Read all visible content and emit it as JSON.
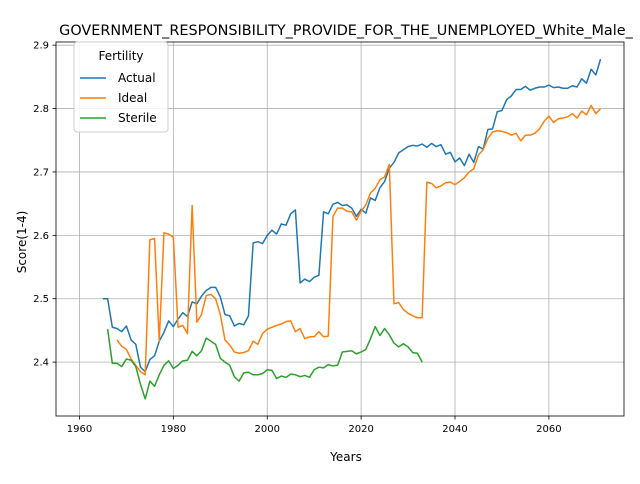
{
  "chart_data": {
    "type": "line",
    "title": "GOVERNMENT_RESPONSIBILITY_PROVIDE_FOR_THE_UNEMPLOYED_White_Male_",
    "xlabel": "Years",
    "ylabel": "Score(1-4)",
    "xlim": [
      1955,
      2076
    ],
    "ylim": [
      2.315,
      2.905
    ],
    "xticks": [
      1960,
      1980,
      2000,
      2020,
      2040,
      2060
    ],
    "yticks": [
      2.4,
      2.5,
      2.6,
      2.7,
      2.8,
      2.9
    ],
    "grid": true,
    "legend": {
      "title": "Fertility",
      "placement": "top-left"
    },
    "series": [
      {
        "name": "Actual",
        "color": "#1f77b4",
        "points": [
          [
            1965,
            2.5
          ],
          [
            1966,
            2.5
          ],
          [
            1967,
            2.455
          ],
          [
            1968,
            2.453
          ],
          [
            1969,
            2.448
          ],
          [
            1970,
            2.457
          ],
          [
            1971,
            2.435
          ],
          [
            1972,
            2.428
          ],
          [
            1973,
            2.392
          ],
          [
            1974,
            2.385
          ],
          [
            1975,
            2.404
          ],
          [
            1976,
            2.41
          ],
          [
            1977,
            2.433
          ],
          [
            1978,
            2.447
          ],
          [
            1979,
            2.465
          ],
          [
            1980,
            2.456
          ],
          [
            1981,
            2.468
          ],
          [
            1982,
            2.478
          ],
          [
            1983,
            2.472
          ],
          [
            1984,
            2.495
          ],
          [
            1985,
            2.492
          ],
          [
            1986,
            2.504
          ],
          [
            1987,
            2.513
          ],
          [
            1988,
            2.518
          ],
          [
            1989,
            2.518
          ],
          [
            1990,
            2.503
          ],
          [
            1991,
            2.475
          ],
          [
            1992,
            2.473
          ],
          [
            1993,
            2.457
          ],
          [
            1994,
            2.461
          ],
          [
            1995,
            2.459
          ],
          [
            1996,
            2.473
          ],
          [
            1997,
            2.588
          ],
          [
            1998,
            2.59
          ],
          [
            1999,
            2.587
          ],
          [
            2000,
            2.6
          ],
          [
            2001,
            2.608
          ],
          [
            2002,
            2.602
          ],
          [
            2003,
            2.618
          ],
          [
            2004,
            2.616
          ],
          [
            2005,
            2.634
          ],
          [
            2006,
            2.64
          ],
          [
            2007,
            2.525
          ],
          [
            2008,
            2.531
          ],
          [
            2009,
            2.527
          ],
          [
            2010,
            2.534
          ],
          [
            2011,
            2.537
          ],
          [
            2012,
            2.637
          ],
          [
            2013,
            2.634
          ],
          [
            2014,
            2.649
          ],
          [
            2015,
            2.652
          ],
          [
            2016,
            2.647
          ],
          [
            2017,
            2.648
          ],
          [
            2018,
            2.643
          ],
          [
            2019,
            2.63
          ],
          [
            2020,
            2.641
          ],
          [
            2021,
            2.635
          ],
          [
            2022,
            2.659
          ],
          [
            2023,
            2.655
          ],
          [
            2024,
            2.675
          ],
          [
            2025,
            2.685
          ],
          [
            2026,
            2.706
          ],
          [
            2027,
            2.715
          ],
          [
            2028,
            2.73
          ],
          [
            2029,
            2.735
          ],
          [
            2030,
            2.74
          ],
          [
            2031,
            2.742
          ],
          [
            2032,
            2.741
          ],
          [
            2033,
            2.744
          ],
          [
            2034,
            2.739
          ],
          [
            2035,
            2.745
          ],
          [
            2036,
            2.74
          ],
          [
            2037,
            2.743
          ],
          [
            2038,
            2.728
          ],
          [
            2039,
            2.731
          ],
          [
            2040,
            2.716
          ],
          [
            2041,
            2.722
          ],
          [
            2042,
            2.71
          ],
          [
            2043,
            2.728
          ],
          [
            2044,
            2.715
          ],
          [
            2045,
            2.74
          ],
          [
            2046,
            2.736
          ],
          [
            2047,
            2.767
          ],
          [
            2048,
            2.768
          ],
          [
            2049,
            2.795
          ],
          [
            2050,
            2.797
          ],
          [
            2051,
            2.814
          ],
          [
            2052,
            2.82
          ],
          [
            2053,
            2.83
          ],
          [
            2054,
            2.83
          ],
          [
            2055,
            2.835
          ],
          [
            2056,
            2.829
          ],
          [
            2057,
            2.832
          ],
          [
            2058,
            2.834
          ],
          [
            2059,
            2.834
          ],
          [
            2060,
            2.837
          ],
          [
            2061,
            2.833
          ],
          [
            2062,
            2.834
          ],
          [
            2063,
            2.832
          ],
          [
            2064,
            2.832
          ],
          [
            2065,
            2.836
          ],
          [
            2066,
            2.834
          ],
          [
            2067,
            2.847
          ],
          [
            2068,
            2.84
          ],
          [
            2069,
            2.862
          ],
          [
            2070,
            2.853
          ],
          [
            2071,
            2.878
          ]
        ]
      },
      {
        "name": "Ideal",
        "color": "#ff7f0e",
        "points": [
          [
            1968,
            2.435
          ],
          [
            1969,
            2.425
          ],
          [
            1970,
            2.42
          ],
          [
            1971,
            2.405
          ],
          [
            1972,
            2.395
          ],
          [
            1973,
            2.385
          ],
          [
            1974,
            2.38
          ],
          [
            1975,
            2.593
          ],
          [
            1976,
            2.595
          ],
          [
            1977,
            2.433
          ],
          [
            1978,
            2.604
          ],
          [
            1979,
            2.602
          ],
          [
            1980,
            2.597
          ],
          [
            1981,
            2.455
          ],
          [
            1982,
            2.458
          ],
          [
            1983,
            2.445
          ],
          [
            1984,
            2.647
          ],
          [
            1985,
            2.463
          ],
          [
            1986,
            2.475
          ],
          [
            1987,
            2.505
          ],
          [
            1988,
            2.507
          ],
          [
            1989,
            2.5
          ],
          [
            1990,
            2.475
          ],
          [
            1991,
            2.435
          ],
          [
            1992,
            2.427
          ],
          [
            1993,
            2.416
          ],
          [
            1994,
            2.414
          ],
          [
            1995,
            2.415
          ],
          [
            1996,
            2.418
          ],
          [
            1997,
            2.433
          ],
          [
            1998,
            2.428
          ],
          [
            1999,
            2.445
          ],
          [
            2000,
            2.452
          ],
          [
            2001,
            2.455
          ],
          [
            2002,
            2.458
          ],
          [
            2003,
            2.46
          ],
          [
            2004,
            2.464
          ],
          [
            2005,
            2.465
          ],
          [
            2006,
            2.448
          ],
          [
            2007,
            2.453
          ],
          [
            2008,
            2.437
          ],
          [
            2009,
            2.44
          ],
          [
            2010,
            2.44
          ],
          [
            2011,
            2.448
          ],
          [
            2012,
            2.44
          ],
          [
            2013,
            2.441
          ],
          [
            2014,
            2.63
          ],
          [
            2015,
            2.643
          ],
          [
            2016,
            2.643
          ],
          [
            2017,
            2.638
          ],
          [
            2018,
            2.637
          ],
          [
            2019,
            2.624
          ],
          [
            2020,
            2.638
          ],
          [
            2021,
            2.648
          ],
          [
            2022,
            2.667
          ],
          [
            2023,
            2.674
          ],
          [
            2024,
            2.688
          ],
          [
            2025,
            2.692
          ],
          [
            2026,
            2.712
          ],
          [
            2027,
            2.492
          ],
          [
            2028,
            2.494
          ],
          [
            2029,
            2.483
          ],
          [
            2030,
            2.477
          ],
          [
            2031,
            2.473
          ],
          [
            2032,
            2.47
          ],
          [
            2033,
            2.47
          ],
          [
            2034,
            2.684
          ],
          [
            2035,
            2.682
          ],
          [
            2036,
            2.675
          ],
          [
            2037,
            2.678
          ],
          [
            2038,
            2.683
          ],
          [
            2039,
            2.684
          ],
          [
            2040,
            2.68
          ],
          [
            2041,
            2.685
          ],
          [
            2042,
            2.691
          ],
          [
            2043,
            2.7
          ],
          [
            2044,
            2.705
          ],
          [
            2045,
            2.727
          ],
          [
            2046,
            2.735
          ],
          [
            2047,
            2.753
          ],
          [
            2048,
            2.763
          ],
          [
            2049,
            2.765
          ],
          [
            2050,
            2.764
          ],
          [
            2051,
            2.762
          ],
          [
            2052,
            2.758
          ],
          [
            2053,
            2.761
          ],
          [
            2054,
            2.749
          ],
          [
            2055,
            2.758
          ],
          [
            2056,
            2.758
          ],
          [
            2057,
            2.761
          ],
          [
            2058,
            2.768
          ],
          [
            2059,
            2.78
          ],
          [
            2060,
            2.788
          ],
          [
            2061,
            2.778
          ],
          [
            2062,
            2.784
          ],
          [
            2063,
            2.785
          ],
          [
            2064,
            2.787
          ],
          [
            2065,
            2.792
          ],
          [
            2066,
            2.785
          ],
          [
            2067,
            2.796
          ],
          [
            2068,
            2.79
          ],
          [
            2069,
            2.805
          ],
          [
            2070,
            2.792
          ],
          [
            2071,
            2.8
          ]
        ]
      },
      {
        "name": "Sterile",
        "color": "#2ca02c",
        "points": [
          [
            1966,
            2.452
          ],
          [
            1967,
            2.398
          ],
          [
            1968,
            2.398
          ],
          [
            1969,
            2.393
          ],
          [
            1970,
            2.405
          ],
          [
            1971,
            2.403
          ],
          [
            1972,
            2.393
          ],
          [
            1973,
            2.365
          ],
          [
            1974,
            2.342
          ],
          [
            1975,
            2.37
          ],
          [
            1976,
            2.362
          ],
          [
            1977,
            2.38
          ],
          [
            1978,
            2.395
          ],
          [
            1979,
            2.402
          ],
          [
            1980,
            2.39
          ],
          [
            1981,
            2.395
          ],
          [
            1982,
            2.402
          ],
          [
            1983,
            2.403
          ],
          [
            1984,
            2.417
          ],
          [
            1985,
            2.41
          ],
          [
            1986,
            2.418
          ],
          [
            1987,
            2.438
          ],
          [
            1988,
            2.433
          ],
          [
            1989,
            2.428
          ],
          [
            1990,
            2.406
          ],
          [
            1991,
            2.4
          ],
          [
            1992,
            2.395
          ],
          [
            1993,
            2.377
          ],
          [
            1994,
            2.37
          ],
          [
            1995,
            2.383
          ],
          [
            1996,
            2.384
          ],
          [
            1997,
            2.38
          ],
          [
            1998,
            2.38
          ],
          [
            1999,
            2.382
          ],
          [
            2000,
            2.388
          ],
          [
            2001,
            2.387
          ],
          [
            2002,
            2.374
          ],
          [
            2003,
            2.378
          ],
          [
            2004,
            2.376
          ],
          [
            2005,
            2.381
          ],
          [
            2006,
            2.38
          ],
          [
            2007,
            2.377
          ],
          [
            2008,
            2.379
          ],
          [
            2009,
            2.376
          ],
          [
            2010,
            2.388
          ],
          [
            2011,
            2.392
          ],
          [
            2012,
            2.391
          ],
          [
            2013,
            2.396
          ],
          [
            2014,
            2.394
          ],
          [
            2015,
            2.395
          ],
          [
            2016,
            2.416
          ],
          [
            2017,
            2.417
          ],
          [
            2018,
            2.418
          ],
          [
            2019,
            2.413
          ],
          [
            2020,
            2.416
          ],
          [
            2021,
            2.42
          ],
          [
            2022,
            2.437
          ],
          [
            2023,
            2.456
          ],
          [
            2024,
            2.442
          ],
          [
            2025,
            2.453
          ],
          [
            2026,
            2.443
          ],
          [
            2027,
            2.43
          ],
          [
            2028,
            2.424
          ],
          [
            2029,
            2.429
          ],
          [
            2030,
            2.424
          ],
          [
            2031,
            2.415
          ],
          [
            2032,
            2.414
          ],
          [
            2033,
            2.4
          ]
        ]
      }
    ]
  }
}
